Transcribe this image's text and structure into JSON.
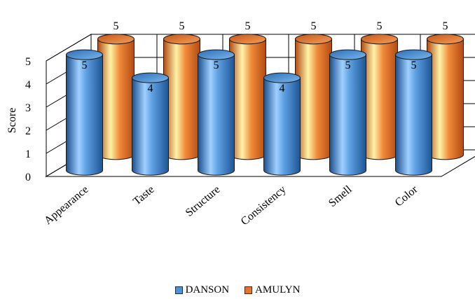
{
  "chart_data": {
    "type": "bar",
    "subtype": "3d-cylinder",
    "title": "",
    "xlabel": "",
    "ylabel": "Score",
    "ylim": [
      0,
      5
    ],
    "yticks": [
      "0",
      "1",
      "2",
      "3",
      "4",
      "5"
    ],
    "categories": [
      "Appearance",
      "Taste",
      "Structure",
      "Consistency",
      "Smell",
      "Color"
    ],
    "series": [
      {
        "name": "DANSON",
        "values": [
          5,
          4,
          5,
          4,
          5,
          5
        ],
        "color": "#4f91d6"
      },
      {
        "name": "AMULYN",
        "values": [
          5,
          5,
          5,
          5,
          5,
          5
        ],
        "color": "#e8742a"
      }
    ],
    "grid": true,
    "legend_position": "bottom",
    "data_labels": true
  }
}
